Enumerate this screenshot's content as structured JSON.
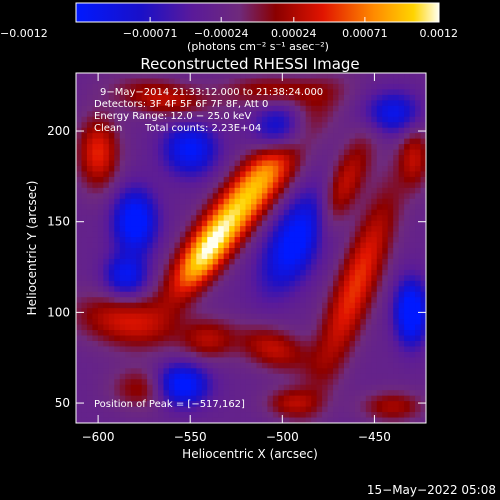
{
  "chart_data": {
    "type": "heatmap",
    "title": "Reconstructed RHESSI Image",
    "xlabel": "Heliocentric X (arcsec)",
    "ylabel": "Heliocentric Y (arcsec)",
    "xlim": [
      -612,
      -422
    ],
    "ylim": [
      39,
      232
    ],
    "x_ticks": [
      -600,
      -550,
      -500,
      -450
    ],
    "x_tick_labels": [
      "−600",
      "−550",
      "−500",
      "−450"
    ],
    "y_ticks": [
      50,
      100,
      150,
      200
    ],
    "y_tick_labels": [
      "50",
      "100",
      "150",
      "200"
    ],
    "colorbar": {
      "min": -0.0012,
      "max": 0.0012,
      "ticks": [
        -0.0012,
        -0.00071,
        -0.00024,
        0.00024,
        0.00071,
        0.0012
      ],
      "tick_labels": [
        "−0.0012",
        "−0.00071",
        "−0.00024",
        "0.00024",
        "0.00071",
        "0.0012"
      ],
      "units": "(photons cm⁻² s⁻¹ asec⁻²)"
    },
    "annotations": {
      "time_range": "9−May−2014 21:33:12.000 to 21:38:24.000",
      "detectors": "Detectors: 3F 4F 5F 6F 7F 8F, Att 0",
      "energy": "Energy Range: 12.0 − 25.0 keV",
      "clean": "Clean",
      "counts": "Total counts: 2.23E+04",
      "peak": "Position of Peak = [−517,162]"
    },
    "peak": [
      -517,
      162
    ],
    "sources": [
      {
        "x": -518,
        "y": 165,
        "sx": 9,
        "sy": 38,
        "rot": 38,
        "amp": 0.00125
      },
      {
        "x": -543,
        "y": 130,
        "sx": 7,
        "sy": 18,
        "rot": 35,
        "amp": 0.0008
      },
      {
        "x": -470,
        "y": 163,
        "sx": 7,
        "sy": 25,
        "rot": 25,
        "amp": 0.00078
      },
      {
        "x": -460,
        "y": 115,
        "sx": 8,
        "sy": 40,
        "rot": 20,
        "amp": 0.0008
      },
      {
        "x": -600,
        "y": 188,
        "sx": 8,
        "sy": 14,
        "rot": 0,
        "amp": 0.00075
      },
      {
        "x": -565,
        "y": 218,
        "sx": 18,
        "sy": 7,
        "rot": 10,
        "amp": 0.0006
      },
      {
        "x": -505,
        "y": 222,
        "sx": 20,
        "sy": 6,
        "rot": 0,
        "amp": 0.0005
      },
      {
        "x": -585,
        "y": 95,
        "sx": 20,
        "sy": 10,
        "rot": 10,
        "amp": 0.00065
      },
      {
        "x": -575,
        "y": 58,
        "sx": 12,
        "sy": 8,
        "rot": 0,
        "amp": 0.0005
      },
      {
        "x": -540,
        "y": 85,
        "sx": 10,
        "sy": 8,
        "rot": 0,
        "amp": 0.0005
      },
      {
        "x": -505,
        "y": 80,
        "sx": 14,
        "sy": 8,
        "rot": 20,
        "amp": 0.0006
      },
      {
        "x": -495,
        "y": 50,
        "sx": 10,
        "sy": 6,
        "rot": 0,
        "amp": 0.0005
      },
      {
        "x": -440,
        "y": 48,
        "sx": 12,
        "sy": 6,
        "rot": 0,
        "amp": 0.0005
      },
      {
        "x": -428,
        "y": 185,
        "sx": 6,
        "sy": 12,
        "rot": 0,
        "amp": 0.0005
      },
      {
        "x": -580,
        "y": 150,
        "sx": 8,
        "sy": 12,
        "rot": 0,
        "amp": -0.0011
      },
      {
        "x": -550,
        "y": 190,
        "sx": 10,
        "sy": 10,
        "rot": 0,
        "amp": -0.0009
      },
      {
        "x": -490,
        "y": 140,
        "sx": 10,
        "sy": 20,
        "rot": 30,
        "amp": -0.0012
      },
      {
        "x": -500,
        "y": 200,
        "sx": 10,
        "sy": 10,
        "rot": 0,
        "amp": -0.0009
      },
      {
        "x": -555,
        "y": 60,
        "sx": 10,
        "sy": 8,
        "rot": 0,
        "amp": -0.0011
      },
      {
        "x": -430,
        "y": 100,
        "sx": 6,
        "sy": 12,
        "rot": 0,
        "amp": -0.0012
      },
      {
        "x": -440,
        "y": 210,
        "sx": 10,
        "sy": 8,
        "rot": 0,
        "amp": -0.0008
      },
      {
        "x": -585,
        "y": 120,
        "sx": 8,
        "sy": 8,
        "rot": 0,
        "amp": -0.0008
      }
    ]
  },
  "footer": {
    "timestamp": "15−May−2022 05:08"
  }
}
